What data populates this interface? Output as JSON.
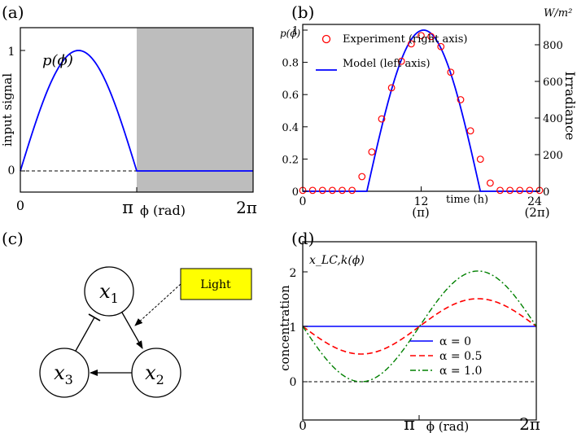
{
  "figure": {
    "panel_labels": [
      "(a)",
      "(b)",
      "(c)",
      "(d)"
    ]
  },
  "chart_data": [
    {
      "panel": "(a)",
      "type": "line",
      "annotation": "p(ϕ)",
      "ylabel": "input signal",
      "xlabel": "ϕ (rad)",
      "x_ticks": [
        "0",
        "π",
        "2π"
      ],
      "y_ticks": [
        "0",
        "1"
      ],
      "xlim": [
        0,
        6.2832
      ],
      "ylim": [
        -0.18,
        1.2
      ],
      "shaded_region": [
        3.1416,
        6.2832
      ],
      "shade_color": "#bdbdbd",
      "series": [
        {
          "formula": "max(sin(ϕ),0) on [0,π], 0 on [π,2π]",
          "color": "#0000ff",
          "style": "solid"
        },
        {
          "formula": "0",
          "color": "#000000",
          "style": "dashed"
        }
      ]
    },
    {
      "panel": "(b)",
      "type": "line",
      "xlabel": "time (h)",
      "x_ticks": [
        "0",
        "12",
        "24"
      ],
      "x_tick_secondary": [
        "(π)",
        "(2π)"
      ],
      "xlim": [
        0,
        24
      ],
      "left_axis": {
        "label": "p(ϕ)",
        "ticks": [
          "0",
          "0.2",
          "0.4",
          "0.6",
          "0.8",
          "1"
        ],
        "ylim": [
          0,
          1.05
        ]
      },
      "right_axis": {
        "label": "Irradiance",
        "unit": "W/m²",
        "ticks": [
          "0",
          "200",
          "400",
          "600",
          "800"
        ],
        "ylim": [
          0,
          860
        ]
      },
      "legend": [
        "Experiment (right axis)",
        "Model (left axis)"
      ],
      "legend_position": "top-left",
      "series": [
        {
          "name": "Experiment (right axis)",
          "axis": "right",
          "marker": "open-circle",
          "color": "#ff0000",
          "x": [
            0,
            1,
            2,
            3,
            4,
            5,
            6,
            7,
            8,
            9,
            10,
            11,
            12,
            13,
            14,
            15,
            16,
            17,
            18,
            19,
            20,
            21,
            22,
            23,
            24
          ],
          "y": [
            5,
            5,
            5,
            5,
            5,
            5,
            80,
            215,
            395,
            565,
            710,
            805,
            850,
            845,
            790,
            650,
            500,
            330,
            175,
            45,
            5,
            5,
            5,
            5,
            5
          ]
        },
        {
          "name": "Model (left axis)",
          "axis": "left",
          "color": "#0000ff",
          "formula": "sin(π(t−6.5)/11.5) for 6.5≤t≤18, else 0"
        }
      ]
    },
    {
      "panel": "(d)",
      "type": "line",
      "annotation": "x_LC,k(ϕ)",
      "ylabel": "concentration",
      "xlabel": "ϕ (rad)",
      "x_ticks": [
        "0",
        "π",
        "2π"
      ],
      "y_ticks": [
        "0",
        "1",
        "2"
      ],
      "xlim": [
        0,
        6.2832
      ],
      "ylim": [
        -0.3,
        2.35
      ],
      "legend_position": "bottom-right",
      "series": [
        {
          "name": "α = 0",
          "color": "#0000ff",
          "style": "solid",
          "formula": "1"
        },
        {
          "name": "α = 0.5",
          "color": "#ff0000",
          "style": "dashed",
          "formula": "1 − 0.5·sin(ϕ)"
        },
        {
          "name": "α = 1.0",
          "color": "#008000",
          "style": "dashdot",
          "formula": "1 − sin(ϕ)"
        },
        {
          "name": "",
          "color": "#000000",
          "style": "dashed",
          "formula": "0"
        }
      ]
    }
  ],
  "diagram_c": {
    "nodes": [
      "x1",
      "x2",
      "x3"
    ],
    "light_label": "Light",
    "light_color": "#ffff00"
  }
}
